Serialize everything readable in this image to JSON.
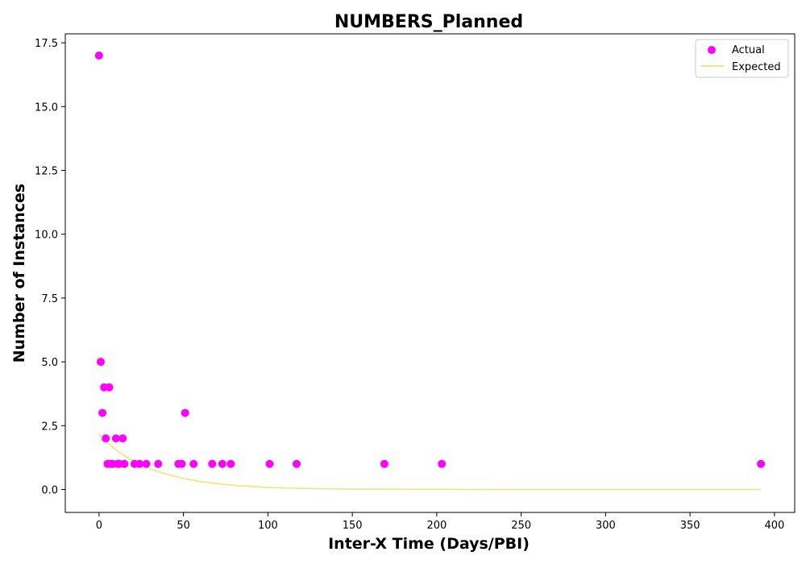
{
  "chart_data": {
    "type": "scatter",
    "title": "NUMBERS_Planned",
    "xlabel": "Inter-X Time (Days/PBI)",
    "ylabel": "Number of Instances",
    "xlim": [
      -20,
      412
    ],
    "ylim": [
      -0.9,
      17.85
    ],
    "xticks": [
      0,
      50,
      100,
      150,
      200,
      250,
      300,
      350,
      400
    ],
    "yticks": [
      0.0,
      2.5,
      5.0,
      7.5,
      10.0,
      12.5,
      15.0,
      17.5
    ],
    "ytick_labels": [
      "0.0",
      "2.5",
      "5.0",
      "7.5",
      "10.0",
      "12.5",
      "15.0",
      "17.5"
    ],
    "grid": false,
    "legend_position": "top-right",
    "series": [
      {
        "name": "Actual",
        "kind": "scatter",
        "color": "#ff00ff",
        "x": [
          0,
          1,
          2,
          3,
          4,
          5,
          6,
          7,
          8,
          10,
          11,
          12,
          14,
          15,
          21,
          24,
          28,
          35,
          47,
          49,
          51,
          56,
          67,
          73,
          78,
          101,
          117,
          169,
          203,
          392
        ],
        "y": [
          17,
          5,
          3,
          4,
          2,
          1,
          4,
          1,
          1,
          2,
          1,
          1,
          2,
          1,
          1,
          1,
          1,
          1,
          1,
          1,
          3,
          1,
          1,
          1,
          1,
          1,
          1,
          1,
          1,
          1
        ]
      },
      {
        "name": "Expected",
        "kind": "line",
        "color": "#f0e68c",
        "x": [
          0,
          5,
          10,
          15,
          20,
          25,
          30,
          35,
          40,
          50,
          60,
          70,
          80,
          90,
          100,
          120,
          140,
          160,
          200,
          250,
          300,
          350,
          392
        ],
        "y": [
          2.15,
          1.83,
          1.56,
          1.33,
          1.13,
          0.96,
          0.82,
          0.7,
          0.6,
          0.43,
          0.31,
          0.23,
          0.16,
          0.12,
          0.08,
          0.045,
          0.02,
          0.01,
          0.003,
          0.001,
          0.0,
          0.0,
          0.0
        ]
      }
    ]
  }
}
